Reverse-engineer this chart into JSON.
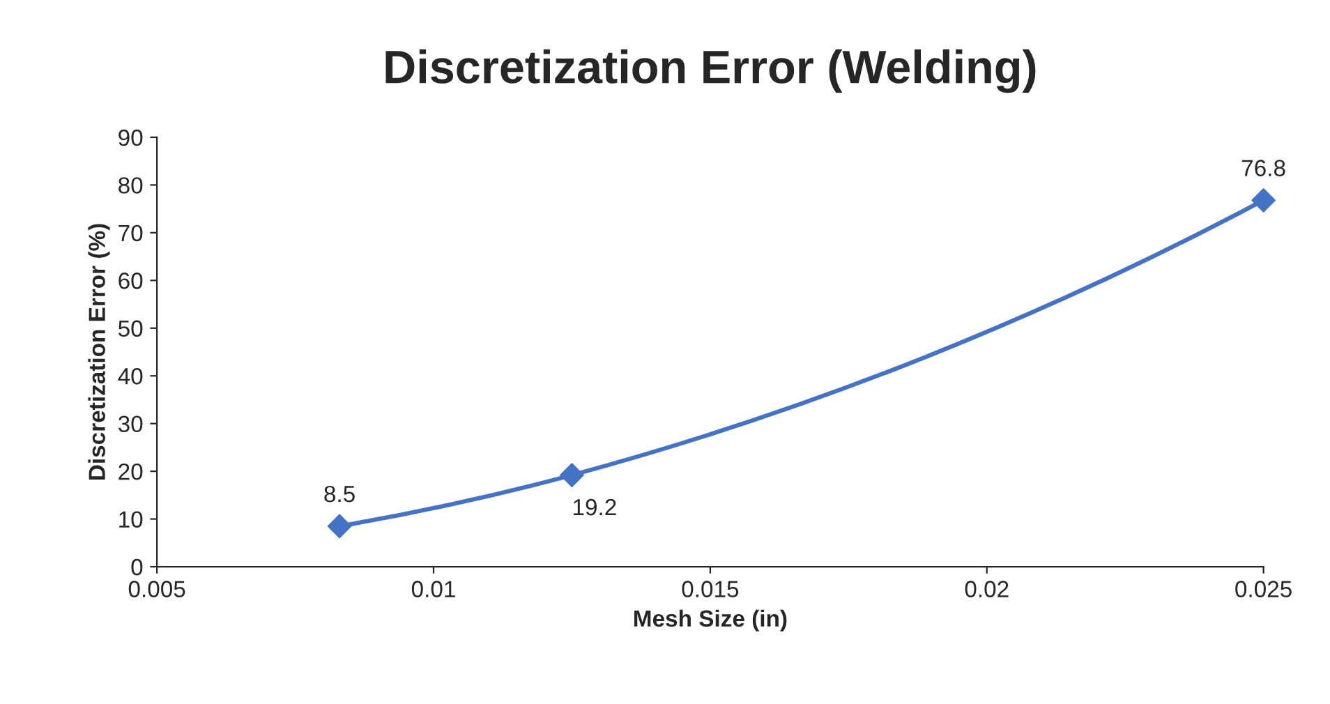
{
  "chart_data": {
    "type": "line",
    "title": "Discretization Error (Welding)",
    "xlabel": "Mesh Size (in)",
    "ylabel": "Discretization Error (%)",
    "x": [
      0.0083,
      0.0125,
      0.025
    ],
    "series": [
      {
        "color": "#4472c4",
        "values": [
          8.5,
          19.2,
          76.8
        ]
      }
    ],
    "xlim": [
      0.005,
      0.025
    ],
    "xticks": [
      0.005,
      0.01,
      0.015,
      0.02,
      0.025
    ],
    "ylim": [
      0,
      90
    ],
    "yticks": [
      0,
      10,
      20,
      30,
      40,
      50,
      60,
      70,
      80,
      90
    ],
    "marker": "diamond",
    "line_style": "solid",
    "data_labels": true,
    "grid": false,
    "legend": false
  }
}
